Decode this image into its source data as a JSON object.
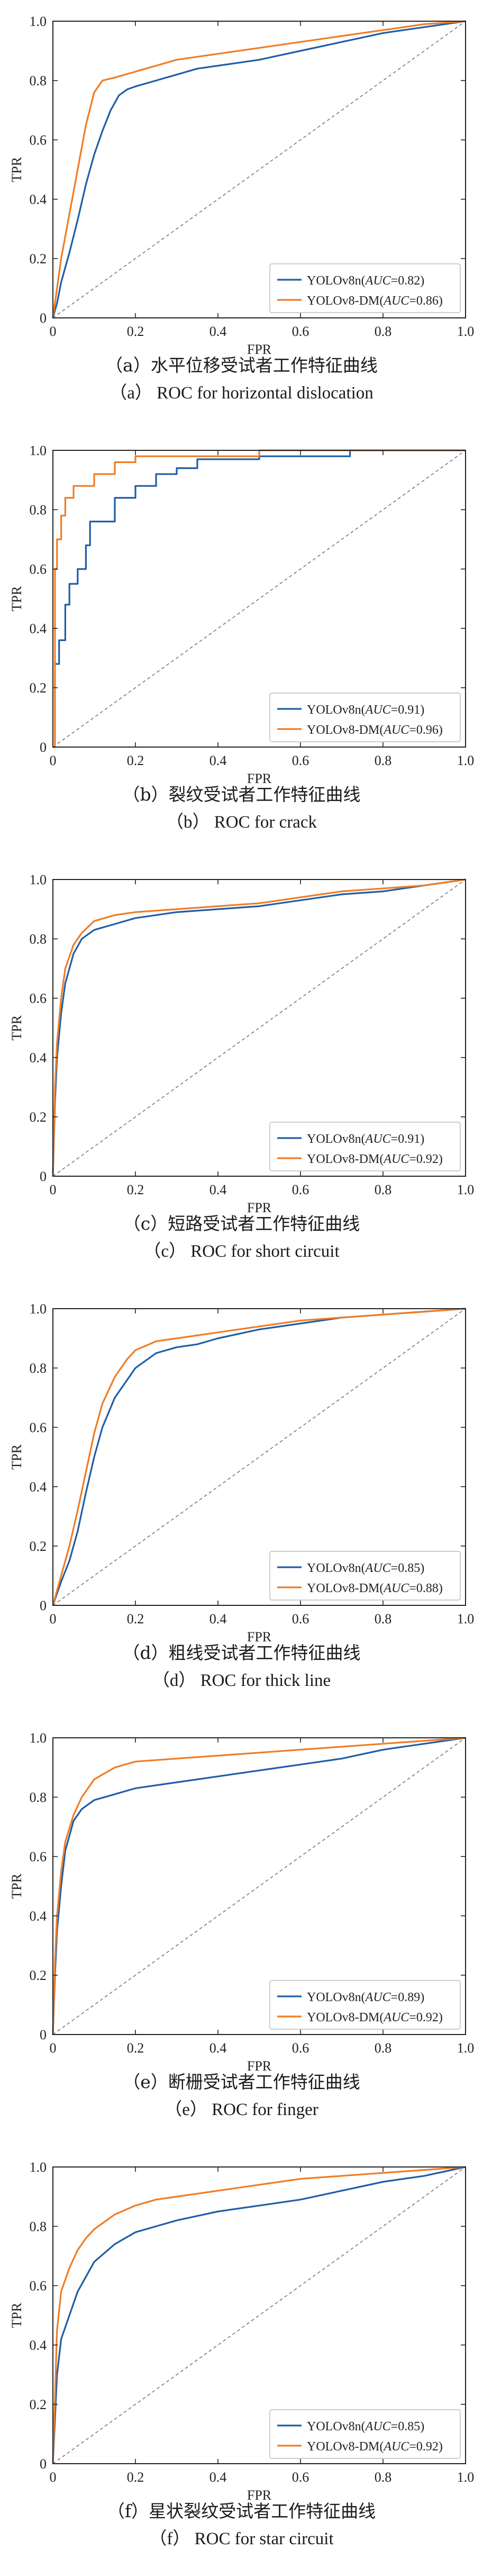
{
  "colors": {
    "blue": "#1f5ea8",
    "orange": "#f07c24",
    "diagonal": "#777777",
    "axes": "#222222"
  },
  "chart_data": [
    {
      "type": "line",
      "panel_key": "a",
      "xlabel": "FPR",
      "ylabel": "TPR",
      "xlim": [
        0,
        1
      ],
      "ylim": [
        0,
        1
      ],
      "xticks": [
        "0",
        "0.2",
        "0.4",
        "0.6",
        "0.8",
        "1.0"
      ],
      "yticks": [
        "0",
        "0.2",
        "0.4",
        "0.6",
        "0.8",
        "1.0"
      ],
      "grid": false,
      "legend_position": "bottom-right",
      "caption_cn": "（a）水平位移受试者工作特征曲线",
      "caption_en": "（a） ROC for horizontal dislocation",
      "series": [
        {
          "name": "YOLOv8n",
          "auc_text": "AUC",
          "auc_value": "=0.82",
          "color": "blue",
          "x": [
            0,
            0.01,
            0.02,
            0.04,
            0.06,
            0.08,
            0.1,
            0.12,
            0.14,
            0.16,
            0.18,
            0.2,
            0.25,
            0.3,
            0.35,
            0.4,
            0.45,
            0.5,
            0.6,
            0.7,
            0.8,
            0.9,
            1.0
          ],
          "y": [
            0,
            0.05,
            0.12,
            0.22,
            0.33,
            0.45,
            0.55,
            0.63,
            0.7,
            0.75,
            0.77,
            0.78,
            0.8,
            0.82,
            0.84,
            0.85,
            0.86,
            0.87,
            0.9,
            0.93,
            0.96,
            0.98,
            1.0
          ]
        },
        {
          "name": "YOLOv8-DM",
          "auc_text": "AUC",
          "auc_value": "=0.86",
          "color": "orange",
          "x": [
            0,
            0.01,
            0.02,
            0.04,
            0.06,
            0.08,
            0.1,
            0.12,
            0.15,
            0.2,
            0.25,
            0.3,
            0.4,
            0.5,
            0.6,
            0.7,
            0.8,
            0.9,
            1.0
          ],
          "y": [
            0,
            0.1,
            0.2,
            0.35,
            0.5,
            0.65,
            0.76,
            0.8,
            0.81,
            0.83,
            0.85,
            0.87,
            0.89,
            0.91,
            0.93,
            0.95,
            0.97,
            0.99,
            1.0
          ]
        }
      ]
    },
    {
      "type": "line",
      "panel_key": "b",
      "xlabel": "FPR",
      "ylabel": "TPR",
      "xlim": [
        0,
        1
      ],
      "ylim": [
        0,
        1
      ],
      "xticks": [
        "0",
        "0.2",
        "0.4",
        "0.6",
        "0.8",
        "1.0"
      ],
      "yticks": [
        "0",
        "0.2",
        "0.4",
        "0.6",
        "0.8",
        "1.0"
      ],
      "grid": false,
      "legend_position": "bottom-right",
      "caption_cn": "（b）裂纹受试者工作特征曲线",
      "caption_en": "（b） ROC for crack",
      "series": [
        {
          "name": "YOLOv8n",
          "auc_text": "AUC",
          "auc_value": "=0.91",
          "color": "blue",
          "x": [
            0,
            0.005,
            0.005,
            0.015,
            0.015,
            0.03,
            0.03,
            0.04,
            0.04,
            0.06,
            0.06,
            0.08,
            0.08,
            0.09,
            0.09,
            0.15,
            0.15,
            0.2,
            0.2,
            0.25,
            0.25,
            0.3,
            0.3,
            0.35,
            0.35,
            0.5,
            0.5,
            0.72,
            0.72,
            1.0
          ],
          "y": [
            0,
            0,
            0.28,
            0.28,
            0.36,
            0.36,
            0.48,
            0.48,
            0.55,
            0.55,
            0.6,
            0.6,
            0.68,
            0.68,
            0.76,
            0.76,
            0.84,
            0.84,
            0.88,
            0.88,
            0.92,
            0.92,
            0.94,
            0.94,
            0.97,
            0.97,
            0.98,
            0.98,
            1.0,
            1.0
          ]
        },
        {
          "name": "YOLOv8-DM",
          "auc_text": "AUC",
          "auc_value": "=0.96",
          "color": "orange",
          "x": [
            0,
            0.005,
            0.005,
            0.01,
            0.01,
            0.02,
            0.02,
            0.03,
            0.03,
            0.05,
            0.05,
            0.1,
            0.1,
            0.15,
            0.15,
            0.2,
            0.2,
            0.5,
            0.5,
            1.0
          ],
          "y": [
            0,
            0,
            0.6,
            0.6,
            0.7,
            0.7,
            0.78,
            0.78,
            0.84,
            0.84,
            0.88,
            0.88,
            0.92,
            0.92,
            0.96,
            0.96,
            0.98,
            0.98,
            1.0,
            1.0
          ]
        }
      ]
    },
    {
      "type": "line",
      "panel_key": "c",
      "xlabel": "FPR",
      "ylabel": "TPR",
      "xlim": [
        0,
        1
      ],
      "ylim": [
        0,
        1
      ],
      "xticks": [
        "0",
        "0.2",
        "0.4",
        "0.6",
        "0.8",
        "1.0"
      ],
      "yticks": [
        "0",
        "0.2",
        "0.4",
        "0.6",
        "0.8",
        "1.0"
      ],
      "grid": false,
      "legend_position": "bottom-right",
      "caption_cn": "（c）短路受试者工作特征曲线",
      "caption_en": "（c） ROC for short circuit",
      "series": [
        {
          "name": "YOLOv8n",
          "auc_text": "AUC",
          "auc_value": "=0.91",
          "color": "blue",
          "x": [
            0,
            0.005,
            0.01,
            0.02,
            0.03,
            0.05,
            0.07,
            0.1,
            0.15,
            0.2,
            0.3,
            0.4,
            0.5,
            0.6,
            0.7,
            0.8,
            0.9,
            1.0
          ],
          "y": [
            0,
            0.25,
            0.4,
            0.55,
            0.65,
            0.75,
            0.8,
            0.83,
            0.85,
            0.87,
            0.89,
            0.9,
            0.91,
            0.93,
            0.95,
            0.96,
            0.98,
            1.0
          ]
        },
        {
          "name": "YOLOv8-DM",
          "auc_text": "AUC",
          "auc_value": "=0.92",
          "color": "orange",
          "x": [
            0,
            0.005,
            0.01,
            0.02,
            0.03,
            0.05,
            0.07,
            0.1,
            0.15,
            0.2,
            0.3,
            0.4,
            0.5,
            0.6,
            0.7,
            0.8,
            0.9,
            1.0
          ],
          "y": [
            0,
            0.3,
            0.45,
            0.6,
            0.7,
            0.78,
            0.82,
            0.86,
            0.88,
            0.89,
            0.9,
            0.91,
            0.92,
            0.94,
            0.96,
            0.97,
            0.98,
            1.0
          ]
        }
      ]
    },
    {
      "type": "line",
      "panel_key": "d",
      "xlabel": "FPR",
      "ylabel": "TPR",
      "xlim": [
        0,
        1
      ],
      "ylim": [
        0,
        1
      ],
      "xticks": [
        "0",
        "0.2",
        "0.4",
        "0.6",
        "0.8",
        "1.0"
      ],
      "yticks": [
        "0",
        "0.2",
        "0.4",
        "0.6",
        "0.8",
        "1.0"
      ],
      "grid": false,
      "legend_position": "bottom-right",
      "caption_cn": "（d）粗线受试者工作特征曲线",
      "caption_en": "（d） ROC for thick line",
      "series": [
        {
          "name": "YOLOv8n",
          "auc_text": "AUC",
          "auc_value": "=0.85",
          "color": "blue",
          "x": [
            0,
            0.02,
            0.04,
            0.06,
            0.08,
            0.1,
            0.12,
            0.15,
            0.18,
            0.2,
            0.25,
            0.3,
            0.35,
            0.4,
            0.5,
            0.6,
            0.7,
            0.8,
            0.9,
            1.0
          ],
          "y": [
            0,
            0.08,
            0.15,
            0.25,
            0.38,
            0.5,
            0.6,
            0.7,
            0.76,
            0.8,
            0.85,
            0.87,
            0.88,
            0.9,
            0.93,
            0.95,
            0.97,
            0.98,
            0.99,
            1.0
          ]
        },
        {
          "name": "YOLOv8-DM",
          "auc_text": "AUC",
          "auc_value": "=0.88",
          "color": "orange",
          "x": [
            0,
            0.02,
            0.04,
            0.06,
            0.08,
            0.1,
            0.12,
            0.15,
            0.18,
            0.2,
            0.25,
            0.3,
            0.4,
            0.5,
            0.6,
            0.7,
            0.8,
            0.9,
            1.0
          ],
          "y": [
            0,
            0.1,
            0.2,
            0.32,
            0.45,
            0.58,
            0.68,
            0.77,
            0.83,
            0.86,
            0.89,
            0.9,
            0.92,
            0.94,
            0.96,
            0.97,
            0.98,
            0.99,
            1.0
          ]
        }
      ]
    },
    {
      "type": "line",
      "panel_key": "e",
      "xlabel": "FPR",
      "ylabel": "TPR",
      "xlim": [
        0,
        1
      ],
      "ylim": [
        0,
        1
      ],
      "xticks": [
        "0",
        "0.2",
        "0.4",
        "0.6",
        "0.8",
        "1.0"
      ],
      "yticks": [
        "0",
        "0.2",
        "0.4",
        "0.6",
        "0.8",
        "1.0"
      ],
      "grid": false,
      "legend_position": "bottom-right",
      "caption_cn": "（e）断栅受试者工作特征曲线",
      "caption_en": "（e） ROC for finger",
      "series": [
        {
          "name": "YOLOv8n",
          "auc_text": "AUC",
          "auc_value": "=0.89",
          "color": "blue",
          "x": [
            0,
            0.005,
            0.01,
            0.02,
            0.03,
            0.05,
            0.07,
            0.1,
            0.15,
            0.2,
            0.3,
            0.4,
            0.5,
            0.6,
            0.7,
            0.8,
            0.9,
            1.0
          ],
          "y": [
            0,
            0.2,
            0.35,
            0.5,
            0.62,
            0.72,
            0.76,
            0.79,
            0.81,
            0.83,
            0.85,
            0.87,
            0.89,
            0.91,
            0.93,
            0.96,
            0.98,
            1.0
          ]
        },
        {
          "name": "YOLOv8-DM",
          "auc_text": "AUC",
          "auc_value": "=0.92",
          "color": "orange",
          "x": [
            0,
            0.005,
            0.01,
            0.02,
            0.03,
            0.05,
            0.07,
            0.1,
            0.15,
            0.2,
            0.3,
            0.4,
            0.5,
            0.6,
            0.7,
            0.8,
            0.9,
            1.0
          ],
          "y": [
            0,
            0.25,
            0.4,
            0.55,
            0.65,
            0.74,
            0.8,
            0.86,
            0.9,
            0.92,
            0.93,
            0.94,
            0.95,
            0.96,
            0.97,
            0.98,
            0.99,
            1.0
          ]
        }
      ]
    },
    {
      "type": "line",
      "panel_key": "f",
      "xlabel": "FPR",
      "ylabel": "TPR",
      "xlim": [
        0,
        1
      ],
      "ylim": [
        0,
        1
      ],
      "xticks": [
        "0",
        "0.2",
        "0.4",
        "0.6",
        "0.8",
        "1.0"
      ],
      "yticks": [
        "0",
        "0.2",
        "0.4",
        "0.6",
        "0.8",
        "1.0"
      ],
      "grid": false,
      "legend_position": "bottom-right",
      "caption_cn": "（f）星状裂纹受试者工作特征曲线",
      "caption_en": "（f） ROC for star circuit",
      "series": [
        {
          "name": "YOLOv8n",
          "auc_text": "AUC",
          "auc_value": "=0.85",
          "color": "blue",
          "x": [
            0,
            0.01,
            0.02,
            0.04,
            0.06,
            0.08,
            0.1,
            0.15,
            0.2,
            0.25,
            0.3,
            0.4,
            0.5,
            0.6,
            0.7,
            0.8,
            0.9,
            1.0
          ],
          "y": [
            0,
            0.3,
            0.42,
            0.5,
            0.58,
            0.63,
            0.68,
            0.74,
            0.78,
            0.8,
            0.82,
            0.85,
            0.87,
            0.89,
            0.92,
            0.95,
            0.97,
            1.0
          ]
        },
        {
          "name": "YOLOv8-DM",
          "auc_text": "AUC",
          "auc_value": "=0.92",
          "color": "orange",
          "x": [
            0,
            0.01,
            0.02,
            0.04,
            0.06,
            0.08,
            0.1,
            0.15,
            0.2,
            0.25,
            0.3,
            0.4,
            0.5,
            0.6,
            0.7,
            0.8,
            0.9,
            1.0
          ],
          "y": [
            0,
            0.45,
            0.58,
            0.66,
            0.72,
            0.76,
            0.79,
            0.84,
            0.87,
            0.89,
            0.9,
            0.92,
            0.94,
            0.96,
            0.97,
            0.98,
            0.99,
            1.0
          ]
        }
      ]
    }
  ]
}
